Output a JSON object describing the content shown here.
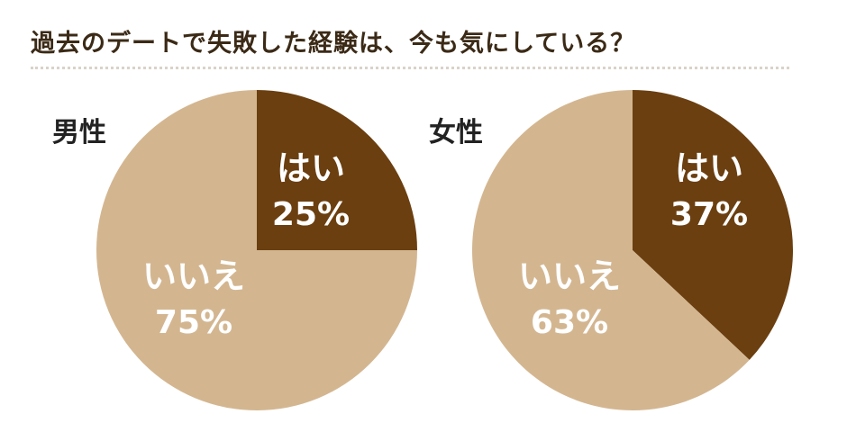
{
  "title": "過去のデートで失敗した経験は、今も気にしている？",
  "colors": {
    "yes": "#6b3f10",
    "no": "#d3b690",
    "label": "#ffffff"
  },
  "chart_data": [
    {
      "type": "pie",
      "group": "男性",
      "slices": [
        {
          "label": "はい",
          "value": 25,
          "value_label": "25%"
        },
        {
          "label": "いいえ",
          "value": 75,
          "value_label": "75%"
        }
      ]
    },
    {
      "type": "pie",
      "group": "女性",
      "slices": [
        {
          "label": "はい",
          "value": 37,
          "value_label": "37%"
        },
        {
          "label": "いいえ",
          "value": 63,
          "value_label": "63%"
        }
      ]
    }
  ]
}
